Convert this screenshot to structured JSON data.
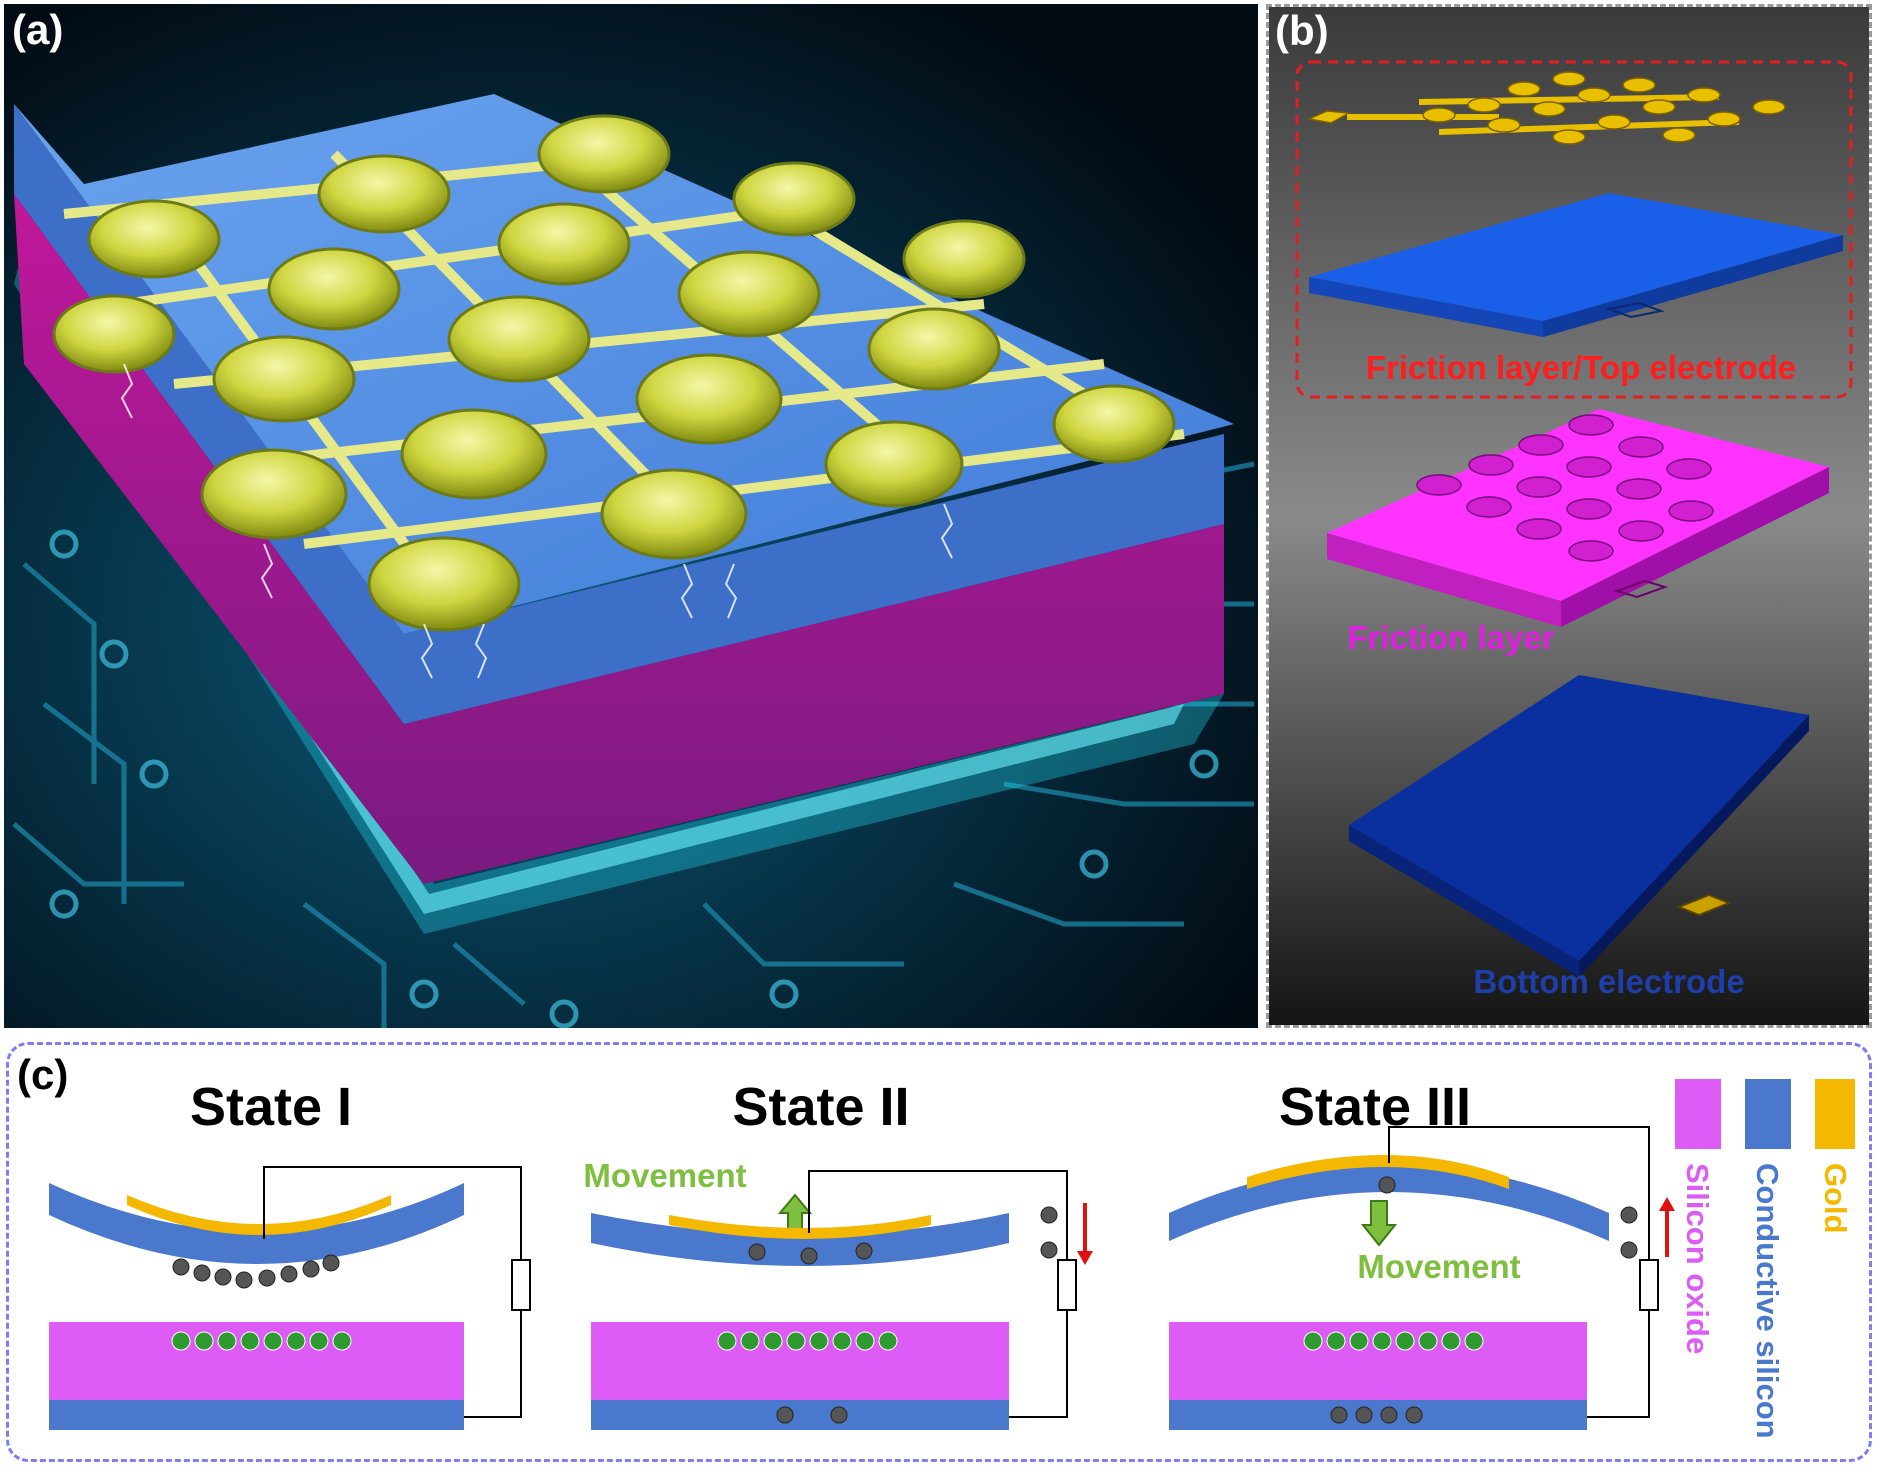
{
  "panels": {
    "a": {
      "label": "(a)"
    },
    "b": {
      "label": "(b)",
      "layers": [
        {
          "label": "Friction layer/Top electrode",
          "color": "#ff1e1e"
        },
        {
          "label": "Friction layer",
          "color": "#e020e0"
        },
        {
          "label": "Bottom electrode",
          "color": "#1e3fa8"
        }
      ]
    },
    "c": {
      "label": "(c)",
      "states": [
        {
          "title": "State I",
          "movement": ""
        },
        {
          "title": "State II",
          "movement": "Movement"
        },
        {
          "title": "State III",
          "movement": "Movement"
        }
      ],
      "legend": [
        {
          "label": "Silicon oxide",
          "color": "#dd5cf5"
        },
        {
          "label": "Conductive silicon",
          "color": "#4a78cc"
        },
        {
          "label": "Gold",
          "color": "#f5b800"
        }
      ],
      "movement_color": "#7fbf3f"
    }
  },
  "colors": {
    "gold": "#f5b800",
    "silicon": "#4a78cc",
    "oxide": "#dd5cf5",
    "arrow_red": "#e01010"
  }
}
